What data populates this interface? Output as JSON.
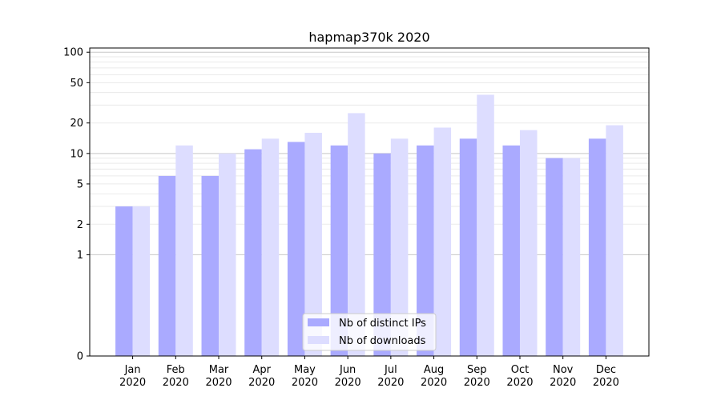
{
  "chart_data": {
    "type": "bar",
    "title": "hapmap370k 2020",
    "xlabel": "",
    "ylabel": "",
    "y_scale": "symlog",
    "ylim": [
      0,
      110
    ],
    "y_ticks": [
      0,
      1,
      2,
      5,
      10,
      20,
      50,
      100
    ],
    "categories": [
      [
        "Jan",
        "2020"
      ],
      [
        "Feb",
        "2020"
      ],
      [
        "Mar",
        "2020"
      ],
      [
        "Apr",
        "2020"
      ],
      [
        "May",
        "2020"
      ],
      [
        "Jun",
        "2020"
      ],
      [
        "Jul",
        "2020"
      ],
      [
        "Aug",
        "2020"
      ],
      [
        "Sep",
        "2020"
      ],
      [
        "Oct",
        "2020"
      ],
      [
        "Nov",
        "2020"
      ],
      [
        "Dec",
        "2020"
      ]
    ],
    "series": [
      {
        "name": "Nb of distinct IPs",
        "color": "#aaaaff",
        "values": [
          3,
          6,
          6,
          11,
          13,
          12,
          10,
          12,
          14,
          12,
          9,
          14
        ]
      },
      {
        "name": "Nb of downloads",
        "color": "#ddddff",
        "values": [
          3,
          12,
          10,
          14,
          16,
          25,
          14,
          18,
          38,
          17,
          9,
          19
        ]
      }
    ],
    "grid": true,
    "legend_position": "lower center"
  }
}
